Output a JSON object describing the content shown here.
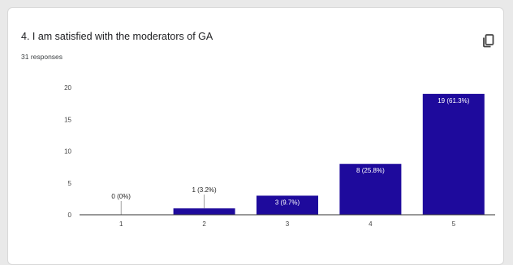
{
  "question": {
    "title": "4. I am satisfied with the moderators of GA",
    "responses": "31 responses"
  },
  "icons": {
    "copy": "copy-icon"
  },
  "colors": {
    "bar": "#1e0a9c",
    "axis": "#333333",
    "grid": "#cccccc",
    "label_on_bar": "#ffffff",
    "label_above": "#222222"
  },
  "chart_data": {
    "type": "bar",
    "title": "",
    "xlabel": "",
    "ylabel": "",
    "categories": [
      "1",
      "2",
      "3",
      "4",
      "5"
    ],
    "values": [
      0,
      1,
      3,
      8,
      19
    ],
    "data_labels": [
      "0 (0%)",
      "1 (3.2%)",
      "3 (9.7%)",
      "8 (25.8%)",
      "19 (61.3%)"
    ],
    "yticks": [
      "0",
      "5",
      "10",
      "15",
      "20"
    ],
    "ylim": [
      0,
      20
    ],
    "grid": false
  }
}
